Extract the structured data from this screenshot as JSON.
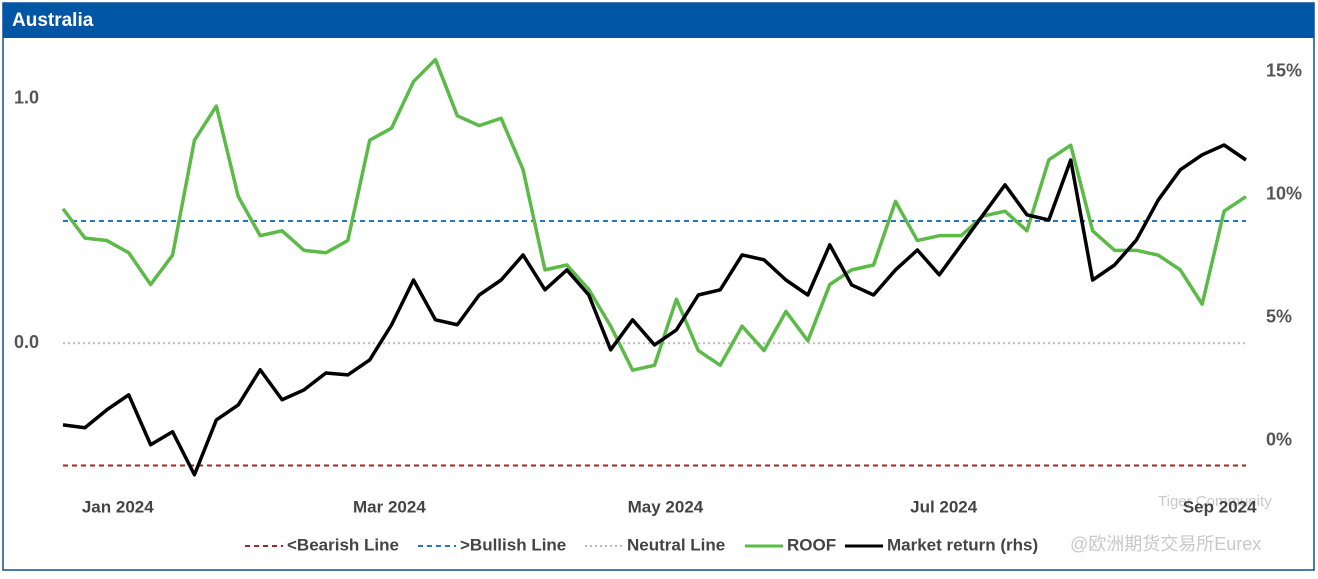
{
  "chart_data": {
    "type": "line",
    "title": "Australia",
    "xlim": [
      0,
      54
    ],
    "xticks": [
      {
        "value": 2.5,
        "label": "Jan 2024"
      },
      {
        "value": 14.9,
        "label": "Mar 2024"
      },
      {
        "value": 27.5,
        "label": "May 2024"
      },
      {
        "value": 40.2,
        "label": "Jul 2024"
      },
      {
        "value": 52.8,
        "label": "Sep 2024"
      }
    ],
    "ylim": [
      -0.6,
      1.24
    ],
    "yticks": [
      {
        "value": 0,
        "label": "0.0"
      },
      {
        "value": 1,
        "label": "1.0"
      }
    ],
    "y2lim": [
      -2,
      16.3
    ],
    "y2ticks": [
      {
        "value": 0,
        "label": "0%"
      },
      {
        "value": 5,
        "label": "5%"
      },
      {
        "value": 10,
        "label": "10%"
      },
      {
        "value": 15,
        "label": "15%"
      }
    ],
    "reference_lines": [
      {
        "name": "<Bearish Line",
        "value": -0.5,
        "color": "#a3262a",
        "style": "dashed"
      },
      {
        "name": ">Bullish Line",
        "value": 0.5,
        "color": "#1f78c8",
        "style": "dashed"
      },
      {
        "name": "Neutral Line",
        "value": 0,
        "color": "#bbbbbb",
        "style": "dotted"
      }
    ],
    "series": [
      {
        "name": "ROOF",
        "color": "#5cba47",
        "values": [
          0.55,
          0.43,
          0.42,
          0.37,
          0.24,
          0.36,
          0.83,
          0.97,
          0.6,
          0.44,
          0.46,
          0.38,
          0.37,
          0.42,
          0.83,
          0.88,
          1.07,
          1.16,
          0.93,
          0.89,
          0.92,
          0.71,
          0.3,
          0.32,
          0.22,
          0.07,
          -0.11,
          -0.09,
          0.18,
          -0.03,
          -0.09,
          0.07,
          -0.03,
          0.13,
          0.01,
          0.24,
          0.3,
          0.32,
          0.58,
          0.42,
          0.44,
          0.44,
          0.52,
          0.54,
          0.46,
          0.75,
          0.81,
          0.46,
          0.38,
          0.38,
          0.36,
          0.3,
          0.16,
          0.54,
          0.6
        ]
      },
      {
        "name": "Market return (rhs)",
        "color": "#000000",
        "axis": "y2",
        "values": [
          0.65,
          0.53,
          1.26,
          1.87,
          -0.16,
          0.37,
          -1.38,
          0.85,
          1.46,
          2.89,
          1.67,
          2.07,
          2.76,
          2.68,
          3.29,
          4.72,
          6.54,
          4.92,
          4.72,
          5.93,
          6.54,
          7.56,
          6.14,
          6.95,
          5.93,
          3.7,
          4.92,
          3.9,
          4.51,
          5.93,
          6.14,
          7.56,
          7.36,
          6.54,
          5.93,
          7.97,
          6.34,
          5.93,
          6.95,
          7.76,
          6.75,
          7.97,
          9.19,
          10.41,
          9.19,
          8.98,
          11.42,
          6.54,
          7.15,
          8.17,
          9.8,
          11.02,
          11.63,
          12.03,
          11.42
        ]
      }
    ],
    "watermarks": [
      "Tiger Community",
      "@欧洲期货交易所Eurex"
    ]
  }
}
